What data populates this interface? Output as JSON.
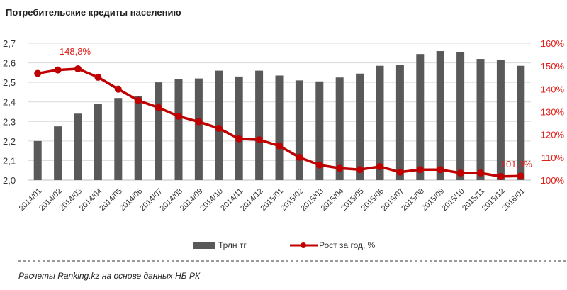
{
  "chart_data": {
    "type": "bar+line",
    "title": "Потребительские  кредиты населению",
    "categories": [
      "2014/01",
      "2014/02",
      "2014/03",
      "2014/04",
      "2014/05",
      "2014/06",
      "2014/07",
      "2014/08",
      "2014/09",
      "2014/10",
      "2014/11",
      "2014/12",
      "2015/01",
      "2015/02",
      "2015/03",
      "2015/04",
      "2015/05",
      "2015/06",
      "2015/07",
      "2015/08",
      "2015/09",
      "2015/10",
      "2015/11",
      "2015/12",
      "2016/01"
    ],
    "series": [
      {
        "name": "Трлн тг",
        "type": "bar",
        "axis": "left",
        "color": "#595959",
        "values": [
          2.2,
          2.275,
          2.34,
          2.39,
          2.42,
          2.43,
          2.5,
          2.515,
          2.52,
          2.56,
          2.53,
          2.56,
          2.535,
          2.51,
          2.505,
          2.525,
          2.545,
          2.585,
          2.59,
          2.645,
          2.66,
          2.655,
          2.62,
          2.615,
          2.585
        ]
      },
      {
        "name": "Рост за год, %",
        "type": "line",
        "axis": "right",
        "color": "#c00000",
        "values": [
          146.8,
          148.3,
          148.8,
          145.1,
          139.9,
          134.9,
          131.8,
          128.0,
          125.6,
          122.7,
          118.1,
          117.7,
          115.0,
          110.0,
          106.6,
          105.2,
          104.6,
          105.9,
          103.5,
          104.6,
          104.6,
          103.1,
          103.1,
          101.6,
          101.8
        ]
      }
    ],
    "y_left": {
      "ylim": [
        2.0,
        2.7
      ],
      "ticks": [
        "2,0",
        "2,1",
        "2,2",
        "2,3",
        "2,4",
        "2,5",
        "2,6",
        "2,7"
      ]
    },
    "y_right": {
      "ylim": [
        100,
        160
      ],
      "ticks": [
        "100%",
        "110%",
        "120%",
        "130%",
        "140%",
        "150%",
        "160%"
      ],
      "color": "#e0201b"
    },
    "annotations": [
      {
        "category": "2014/03",
        "text": "148,8%"
      },
      {
        "category": "2016/01",
        "text": "101,8%"
      }
    ],
    "grid": true,
    "legend": "bottom"
  },
  "footer": "Расчеты Ranking.kz на основе данных  НБ РК"
}
